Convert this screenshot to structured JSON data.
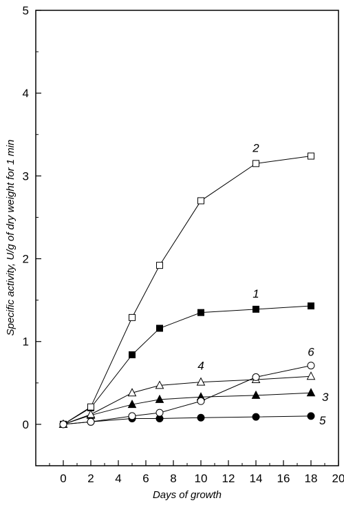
{
  "chart_data": {
    "type": "line",
    "xlabel": "Days of growth",
    "ylabel": "Specific activity, U/g of dry weight for 1 min",
    "xlim": [
      -2,
      20
    ],
    "ylim": [
      -0.5,
      5
    ],
    "xticks": [
      "0",
      "2",
      "4",
      "6",
      "8",
      "10",
      "12",
      "14",
      "16",
      "18",
      "20"
    ],
    "yticks": [
      "0",
      "1",
      "2",
      "3",
      "4",
      "5"
    ],
    "grid": false,
    "legend": "none",
    "series": [
      {
        "name": "1",
        "marker": "square-filled",
        "x": [
          0,
          2,
          5,
          7,
          10,
          14,
          18
        ],
        "values": [
          0,
          0.2,
          0.84,
          1.16,
          1.35,
          1.39,
          1.43
        ]
      },
      {
        "name": "2",
        "marker": "square-open",
        "x": [
          0,
          2,
          5,
          7,
          10,
          14,
          18
        ],
        "values": [
          0,
          0.21,
          1.29,
          1.92,
          2.7,
          3.15,
          3.24
        ]
      },
      {
        "name": "3",
        "marker": "triangle-filled",
        "x": [
          0,
          2,
          5,
          7,
          10,
          14,
          18
        ],
        "values": [
          0,
          0.11,
          0.24,
          0.3,
          0.33,
          0.35,
          0.38
        ]
      },
      {
        "name": "4",
        "marker": "triangle-open",
        "x": [
          0,
          2,
          5,
          7,
          10,
          14,
          18
        ],
        "values": [
          0,
          0.12,
          0.38,
          0.47,
          0.51,
          0.54,
          0.58
        ]
      },
      {
        "name": "5",
        "marker": "circle-filled",
        "x": [
          0,
          2,
          5,
          7,
          10,
          14,
          18
        ],
        "values": [
          0,
          0.03,
          0.07,
          0.07,
          0.08,
          0.09,
          0.1
        ]
      },
      {
        "name": "6",
        "marker": "circle-open",
        "x": [
          0,
          2,
          5,
          7,
          10,
          14,
          18
        ],
        "values": [
          0,
          0.03,
          0.1,
          0.14,
          0.28,
          0.57,
          0.71
        ]
      }
    ]
  }
}
